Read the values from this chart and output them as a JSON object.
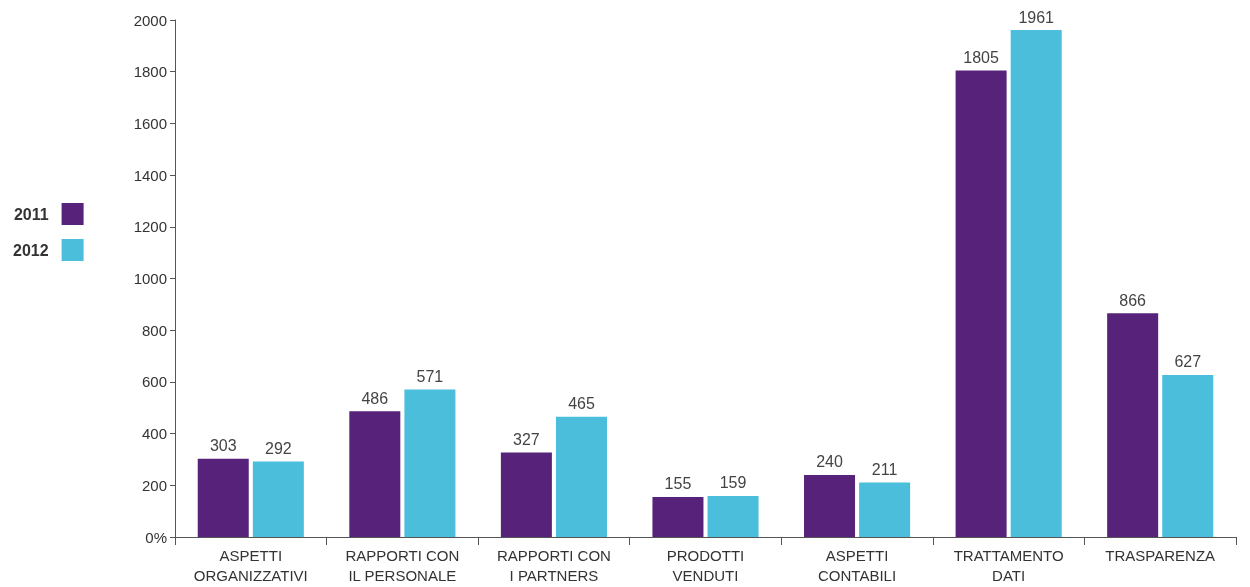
{
  "chart_data": {
    "type": "bar",
    "categories": [
      "ASPETTI\nORGANIZZATIVI",
      "RAPPORTI CON\nIL PERSONALE",
      "RAPPORTI CON\nI PARTNERS",
      "PRODOTTI\nVENDUTI",
      "ASPETTI\nCONTABILI",
      "TRATTAMENTO\nDATI",
      "TRASPARENZA"
    ],
    "series": [
      {
        "name": "2011",
        "color": "#56227a",
        "values": [
          303,
          486,
          327,
          155,
          240,
          1805,
          866
        ]
      },
      {
        "name": "2012",
        "color": "#4bbedc",
        "values": [
          292,
          571,
          465,
          159,
          211,
          1961,
          627
        ]
      }
    ],
    "ylim": [
      0,
      2000
    ],
    "yticks": [
      {
        "value": 0,
        "label": "0%"
      },
      200,
      400,
      600,
      800,
      1000,
      1200,
      1400,
      1600,
      1800,
      2000
    ],
    "data_labels": true,
    "grid": false,
    "legend": "left"
  }
}
